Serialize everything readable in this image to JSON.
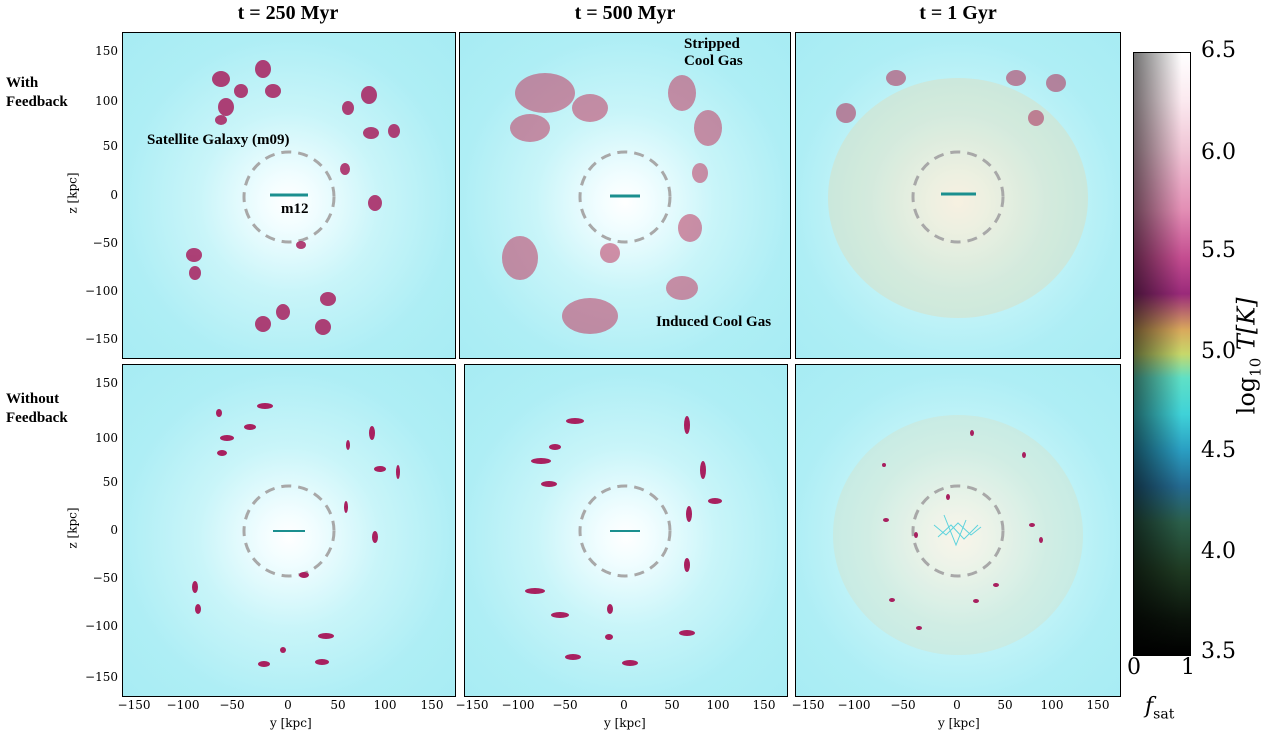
{
  "columns": [
    {
      "title": "t = 250 Myr"
    },
    {
      "title": "t = 500 Myr"
    },
    {
      "title": "t = 1 Gyr"
    }
  ],
  "rows": [
    {
      "label_line1": "With",
      "label_line2": "Feedback"
    },
    {
      "label_line1": "Without",
      "label_line2": "Feedback"
    }
  ],
  "annotations": {
    "satellite": "Satellite Galaxy (m09)",
    "host": "m12",
    "stripped_line1": "Stripped",
    "stripped_line2": "Cool Gas",
    "induced": "Induced Cool Gas"
  },
  "axes": {
    "ylabel": "z [kpc]",
    "xlabel": "y [kpc]",
    "yticks": [
      "150",
      "100",
      "50",
      "0",
      "−50",
      "−100",
      "−150"
    ],
    "xticks": [
      "−150",
      "−100",
      "−50",
      "0",
      "50",
      "100",
      "150"
    ]
  },
  "colorbar": {
    "ticks": [
      "6.5",
      "6.0",
      "5.5",
      "5.0",
      "4.5",
      "4.0",
      "3.5"
    ],
    "label": "log10 T[K]",
    "label_main": "log",
    "label_sub": "10",
    "label_rest": " T[K]",
    "x_ticks": [
      "0",
      "1"
    ],
    "x_label_main": "f",
    "x_label_sub": "sat"
  },
  "colors": {
    "background": "#a7ecf3",
    "cool_gas": "#a8205f",
    "host_disk": "#1b8f8f",
    "circle": "#a8a8a8"
  }
}
